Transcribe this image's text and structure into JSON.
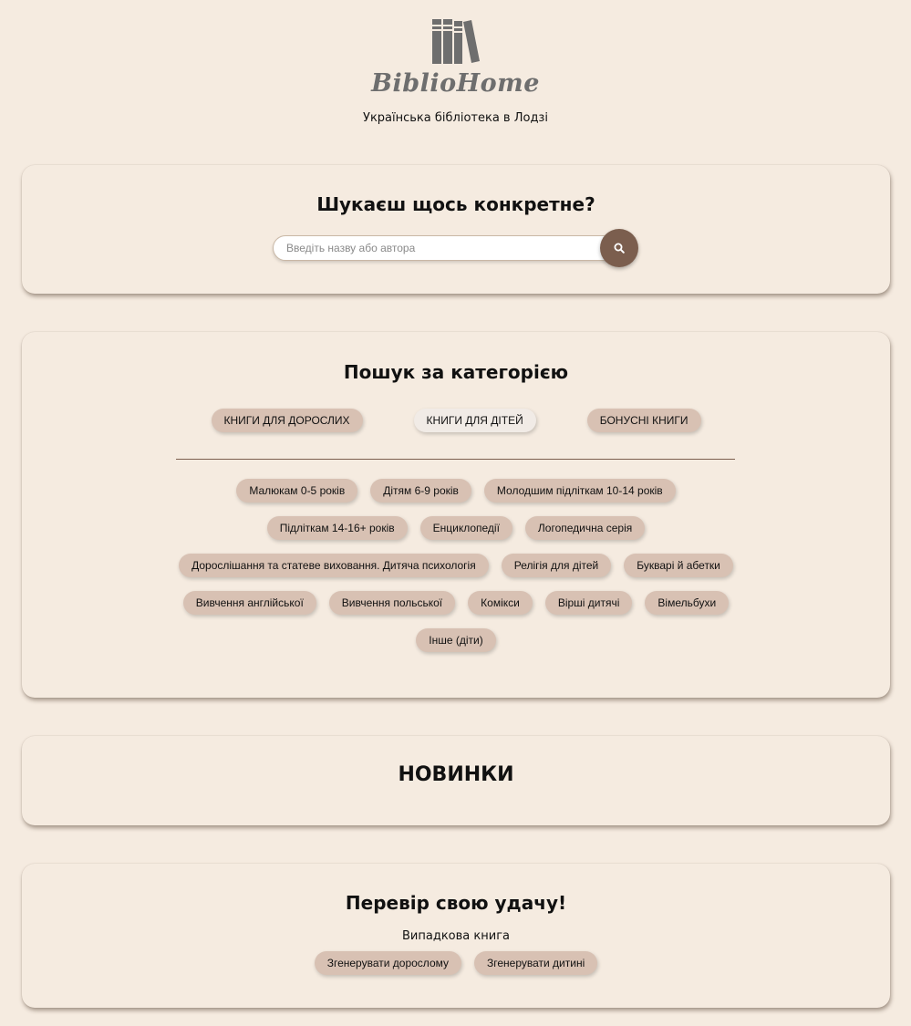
{
  "header": {
    "logo_text": "BiblioHome",
    "tagline": "Українська бібліотека в Лодзі"
  },
  "search": {
    "title": "Шукаєш щось конкретне?",
    "placeholder": "Введіть назву або автора",
    "button_icon": "search-icon"
  },
  "categories": {
    "title": "Пошук за категорією",
    "tabs": [
      {
        "label": "КНИГИ ДЛЯ ДОРОСЛИХ",
        "active": false
      },
      {
        "label": "КНИГИ ДЛЯ ДІТЕЙ",
        "active": true
      },
      {
        "label": "БОНУСНІ КНИГИ",
        "active": false
      }
    ],
    "subcategories": [
      "Малюкам 0-5 років",
      "Дітям 6-9 років",
      "Молодшим підліткам 10-14 років",
      "Підліткам 14-16+ років",
      "Енциклопедії",
      "Логопедична серія",
      "Дорослішання та статеве виховання. Дитяча психологія",
      "Релігія для дітей",
      "Букварі й абетки",
      "Вивчення англійської",
      "Вивчення польської",
      "Комікси",
      "Вірші дитячі",
      "Вімельбухи",
      "Інше (діти)"
    ]
  },
  "new_arrivals": {
    "title": "НОВИНКИ"
  },
  "luck": {
    "title": "Перевір свою удачу!",
    "subtitle": "Випадкова книга",
    "buttons": [
      "Згенерувати дорослому",
      "Згенерувати дитині"
    ]
  },
  "colors": {
    "background": "#f5ebe0",
    "pill": "#d8c1b3",
    "pill_active": "#f1ebe6",
    "accent": "#7b5e4e",
    "logo": "#6e6e6e"
  }
}
